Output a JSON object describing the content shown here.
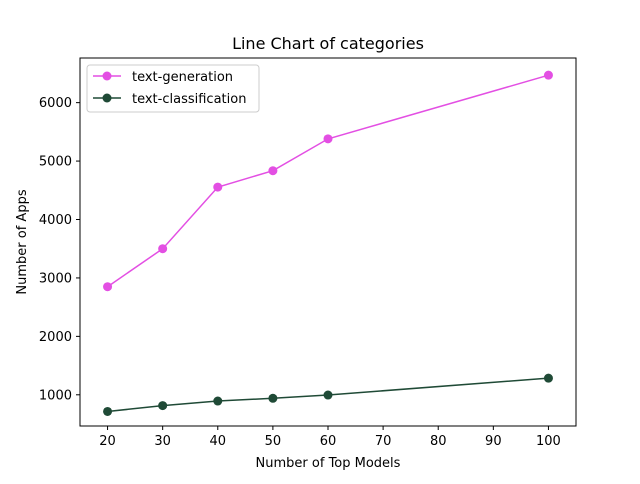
{
  "chart_data": {
    "type": "line",
    "title": "Line Chart of categories",
    "xlabel": "Number of Top Models",
    "ylabel": "Number of Apps",
    "x": [
      20,
      30,
      40,
      50,
      60,
      100
    ],
    "xlim": [
      15,
      105
    ],
    "ylim": [
      466,
      6764
    ],
    "xticks": [
      20,
      30,
      40,
      50,
      60,
      70,
      80,
      90,
      100
    ],
    "yticks": [
      1000,
      2000,
      3000,
      4000,
      5000,
      6000
    ],
    "grid": false,
    "legend": "top-left",
    "series": [
      {
        "name": "text-generation",
        "color": "#e34fe3",
        "values": [
          2850,
          3500,
          4555,
          4835,
          5380,
          6470
        ]
      },
      {
        "name": "text-classification",
        "color": "#1f4a36",
        "values": [
          715,
          815,
          893,
          940,
          996,
          1285
        ]
      }
    ]
  }
}
